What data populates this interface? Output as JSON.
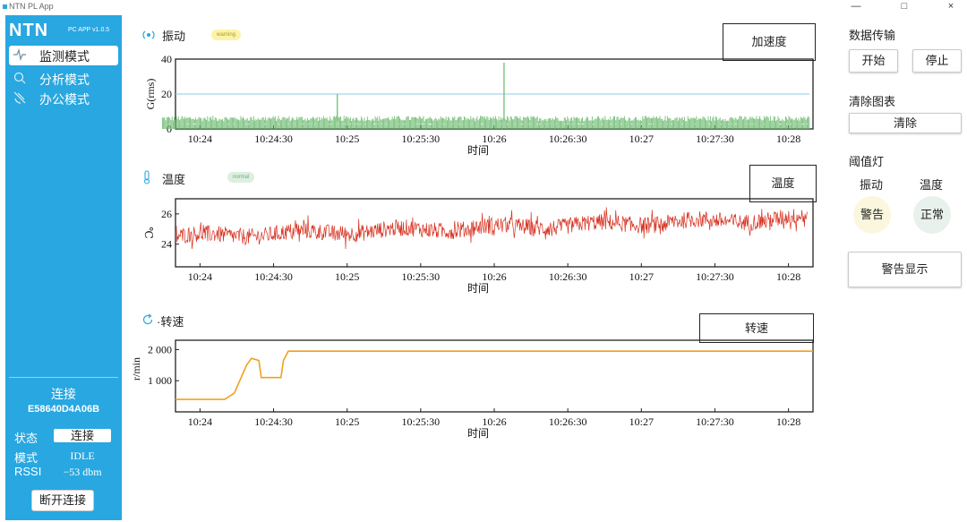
{
  "window": {
    "title": "NTN PL App",
    "controls": [
      "—",
      "□",
      "×"
    ]
  },
  "sidebar": {
    "brand": "NTN",
    "version": "PC APP v1.0.5",
    "nav": [
      {
        "label": "监测模式",
        "icon": "pulse-icon",
        "active": true
      },
      {
        "label": "分析模式",
        "icon": "search-icon",
        "active": false
      },
      {
        "label": "办公模式",
        "icon": "satellite-icon",
        "active": false
      }
    ],
    "connection": {
      "title": "连接",
      "device_id": "E58640D4A06B",
      "state_label": "状态",
      "state_value": "连接",
      "mode_label": "模式",
      "mode_value": "IDLE",
      "rssi_label": "RSSI",
      "rssi_value": "−53 dbm",
      "disconnect_label": "断开连接"
    }
  },
  "charts": {
    "vibration": {
      "title": "振动",
      "badge": "warning",
      "legend": "加速度"
    },
    "temperature": {
      "title": "温度",
      "badge": "normal",
      "legend": "温度"
    },
    "speed": {
      "title": "·转速",
      "legend": "转速"
    }
  },
  "chart_data": [
    {
      "type": "line",
      "id": "vibration",
      "xlabel": "时间",
      "ylabel": "G(rms)",
      "x_ticks": [
        "10:24",
        "10:24:30",
        "10:25",
        "10:25:30",
        "10:26",
        "10:26:30",
        "10:27",
        "10:27:30",
        "10:28"
      ],
      "y_ticks": [
        "0",
        "20",
        "40"
      ],
      "ylim": [
        0,
        40
      ],
      "threshold": 20,
      "baseline": 4.5,
      "spikes": [
        {
          "x": "10:24:56",
          "y": 20
        },
        {
          "x": "10:26:04",
          "y": 38
        }
      ],
      "color": "#67b86a",
      "threshold_color": "#8ecbe6"
    },
    {
      "type": "line",
      "id": "temperature",
      "xlabel": "时间",
      "ylabel": "℃",
      "x_ticks": [
        "10:24",
        "10:24:30",
        "10:25",
        "10:25:30",
        "10:26",
        "10:26:30",
        "10:27",
        "10:27:30",
        "10:28"
      ],
      "y_ticks": [
        "24",
        "26"
      ],
      "ylim": [
        22.5,
        27
      ],
      "start_value": 24.5,
      "end_value": 25.7,
      "color": "#d7301f"
    },
    {
      "type": "line",
      "id": "speed",
      "xlabel": "时间",
      "ylabel": "r/min",
      "x_ticks": [
        "10:24",
        "10:24:30",
        "10:25",
        "10:25:30",
        "10:26",
        "10:26:30",
        "10:27",
        "10:27:30",
        "10:28"
      ],
      "y_ticks": [
        "1 000",
        "2 000"
      ],
      "ylim": [
        0,
        2300
      ],
      "points": [
        {
          "t": "10:23:50",
          "v": 400
        },
        {
          "t": "10:24:10",
          "v": 400
        },
        {
          "t": "10:24:14",
          "v": 600
        },
        {
          "t": "10:24:19",
          "v": 1500
        },
        {
          "t": "10:24:21",
          "v": 1720
        },
        {
          "t": "10:24:24",
          "v": 1650
        },
        {
          "t": "10:24:25",
          "v": 1100
        },
        {
          "t": "10:24:33",
          "v": 1100
        },
        {
          "t": "10:24:34",
          "v": 1650
        },
        {
          "t": "10:24:36",
          "v": 1950
        },
        {
          "t": "10:28:10",
          "v": 1950
        }
      ],
      "color": "#f0a020"
    }
  ],
  "right_panel": {
    "data_transfer": {
      "label": "数据传输",
      "start": "开始",
      "stop": "停止"
    },
    "clear_chart": {
      "label": "清除图表",
      "button": "清除"
    },
    "threshold_lamps": {
      "label": "阈值灯",
      "vibration_label": "振动",
      "temperature_label": "温度",
      "vibration_state": "警告",
      "temperature_state": "正常",
      "warning_color": "#fbf7df",
      "normal_color": "#e8f1ec"
    },
    "alarm_button": "警告显示"
  }
}
